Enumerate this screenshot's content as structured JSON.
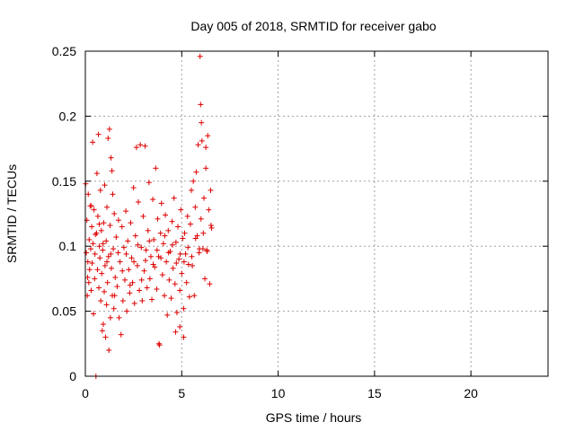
{
  "chart_data": {
    "type": "scatter",
    "title": "Day 005 of 2018, SRMTID for receiver gabo",
    "xlabel": "GPS time / hours",
    "ylabel": "SRMTID / TECUs",
    "xlim": [
      0,
      24
    ],
    "ylim": [
      0,
      0.25
    ],
    "xticks": [
      0,
      5,
      10,
      15,
      20
    ],
    "xtick_labels": [
      "0",
      "5",
      "10",
      "15",
      "20"
    ],
    "yticks": [
      0,
      0.05,
      0.1,
      0.15,
      0.2,
      0.25
    ],
    "ytick_labels": [
      "0",
      "0.05",
      "0.1",
      "0.15",
      "0.2",
      "0.25"
    ],
    "grid": true,
    "marker": "+",
    "color": "#dd0000",
    "series": [
      {
        "name": "SRMTID",
        "points": [
          [
            0.02,
            0.148
          ],
          [
            0.05,
            0.095
          ],
          [
            0.08,
            0.12
          ],
          [
            0.1,
            0.062
          ],
          [
            0.13,
            0.088
          ],
          [
            0.15,
            0.14
          ],
          [
            0.18,
            0.072
          ],
          [
            0.2,
            0.105
          ],
          [
            0.22,
            0.082
          ],
          [
            0.25,
            0.131
          ],
          [
            0.28,
            0.098
          ],
          [
            0.3,
            0.066
          ],
          [
            0.33,
            0.115
          ],
          [
            0.35,
            0.087
          ],
          [
            0.38,
            0.18
          ],
          [
            0.4,
            0.102
          ],
          [
            0.42,
            0.048
          ],
          [
            0.45,
            0.128
          ],
          [
            0.48,
            0.075
          ],
          [
            0.5,
            0.094
          ],
          [
            0.55,
            0.0
          ],
          [
            0.58,
            0.11
          ],
          [
            0.6,
            0.156
          ],
          [
            0.63,
            0.082
          ],
          [
            0.65,
            0.123
          ],
          [
            0.68,
            0.186
          ],
          [
            0.7,
            0.068
          ],
          [
            0.73,
            0.1
          ],
          [
            0.75,
            0.091
          ],
          [
            0.78,
            0.143
          ],
          [
            0.8,
            0.058
          ],
          [
            0.83,
            0.112
          ],
          [
            0.85,
            0.079
          ],
          [
            0.88,
            0.035
          ],
          [
            0.9,
            0.097
          ],
          [
            0.93,
            0.04
          ],
          [
            0.95,
            0.118
          ],
          [
            0.98,
            0.065
          ],
          [
            1.0,
            0.147
          ],
          [
            1.02,
            0.085
          ],
          [
            1.05,
            0.03
          ],
          [
            1.08,
            0.104
          ],
          [
            1.1,
            0.055
          ],
          [
            1.12,
            0.13
          ],
          [
            1.15,
            0.072
          ],
          [
            1.18,
            0.183
          ],
          [
            1.2,
            0.092
          ],
          [
            1.22,
            0.02
          ],
          [
            1.25,
            0.19
          ],
          [
            1.28,
            0.116
          ],
          [
            1.3,
            0.045
          ],
          [
            1.33,
            0.168
          ],
          [
            1.35,
            0.083
          ],
          [
            1.38,
            0.158
          ],
          [
            1.4,
            0.062
          ],
          [
            1.42,
            0.14
          ],
          [
            1.45,
            0.098
          ],
          [
            1.48,
            0.052
          ],
          [
            1.5,
            0.125
          ],
          [
            1.55,
            0.076
          ],
          [
            1.6,
            0.107
          ],
          [
            1.65,
            0.069
          ],
          [
            1.7,
            0.095
          ],
          [
            1.75,
            0.045
          ],
          [
            1.8,
            0.088
          ],
          [
            1.85,
            0.032
          ],
          [
            1.9,
            0.115
          ],
          [
            1.95,
            0.058
          ],
          [
            2.0,
            0.099
          ],
          [
            2.05,
            0.074
          ],
          [
            2.1,
            0.127
          ],
          [
            2.15,
            0.05
          ],
          [
            2.2,
            0.104
          ],
          [
            2.25,
            0.082
          ],
          [
            2.3,
            0.064
          ],
          [
            2.35,
            0.118
          ],
          [
            2.4,
            0.091
          ],
          [
            2.45,
            0.072
          ],
          [
            2.5,
            0.145
          ],
          [
            2.55,
            0.056
          ],
          [
            2.6,
            0.108
          ],
          [
            2.65,
            0.176
          ],
          [
            2.7,
            0.085
          ],
          [
            2.75,
            0.134
          ],
          [
            2.8,
            0.066
          ],
          [
            2.85,
            0.178
          ],
          [
            2.9,
            0.099
          ],
          [
            2.95,
            0.058
          ],
          [
            3.0,
            0.123
          ],
          [
            3.05,
            0.081
          ],
          [
            3.1,
            0.177
          ],
          [
            3.15,
            0.097
          ],
          [
            3.2,
            0.068
          ],
          [
            3.25,
            0.112
          ],
          [
            3.3,
            0.149
          ],
          [
            3.35,
            0.075
          ],
          [
            3.4,
            0.092
          ],
          [
            3.45,
            0.059
          ],
          [
            3.5,
            0.136
          ],
          [
            3.55,
            0.105
          ],
          [
            3.6,
            0.084
          ],
          [
            3.65,
            0.16
          ],
          [
            3.7,
            0.067
          ],
          [
            3.75,
            0.121
          ],
          [
            3.8,
            0.092
          ],
          [
            3.85,
            0.024
          ],
          [
            3.9,
            0.11
          ],
          [
            3.95,
            0.133
          ],
          [
            4.0,
            0.078
          ],
          [
            4.05,
            0.102
          ],
          [
            4.1,
            0.062
          ],
          [
            4.15,
            0.124
          ],
          [
            4.2,
            0.088
          ],
          [
            4.25,
            0.047
          ],
          [
            4.3,
            0.112
          ],
          [
            4.35,
            0.074
          ],
          [
            4.4,
            0.096
          ],
          [
            4.45,
            0.06
          ],
          [
            4.5,
            0.119
          ],
          [
            4.55,
            0.083
          ],
          [
            4.6,
            0.137
          ],
          [
            4.65,
            0.071
          ],
          [
            4.7,
            0.103
          ],
          [
            4.75,
            0.049
          ],
          [
            4.8,
            0.115
          ],
          [
            4.85,
            0.09
          ],
          [
            4.9,
            0.066
          ],
          [
            4.95,
            0.128
          ],
          [
            5.0,
            0.079
          ],
          [
            5.05,
            0.106
          ],
          [
            5.1,
            0.052
          ],
          [
            5.15,
            0.11
          ],
          [
            5.2,
            0.094
          ],
          [
            5.25,
            0.072
          ],
          [
            5.3,
            0.123
          ],
          [
            5.35,
            0.086
          ],
          [
            5.4,
            0.061
          ],
          [
            5.45,
            0.117
          ],
          [
            5.5,
            0.143
          ],
          [
            5.55,
            0.085
          ],
          [
            5.6,
            0.15
          ],
          [
            5.65,
            0.062
          ],
          [
            5.7,
            0.13
          ],
          [
            5.75,
            0.157
          ],
          [
            5.8,
            0.108
          ],
          [
            5.85,
            0.178
          ],
          [
            5.9,
            0.095
          ],
          [
            5.95,
            0.246
          ],
          [
            6.0,
            0.121
          ],
          [
            6.05,
            0.181
          ],
          [
            6.1,
            0.098
          ],
          [
            6.15,
            0.137
          ],
          [
            6.2,
            0.075
          ],
          [
            6.25,
            0.16
          ],
          [
            6.3,
            0.097
          ],
          [
            6.35,
            0.185
          ],
          [
            6.4,
            0.128
          ],
          [
            6.45,
            0.071
          ],
          [
            6.5,
            0.143
          ],
          [
            6.55,
            0.114
          ],
          [
            0.12,
            0.076
          ],
          [
            0.32,
            0.131
          ],
          [
            0.52,
            0.109
          ],
          [
            0.72,
            0.117
          ],
          [
            0.92,
            0.102
          ],
          [
            1.12,
            0.088
          ],
          [
            1.32,
            0.094
          ],
          [
            1.52,
            0.062
          ],
          [
            1.72,
            0.12
          ],
          [
            1.92,
            0.081
          ],
          [
            2.12,
            0.094
          ],
          [
            2.32,
            0.07
          ],
          [
            2.52,
            0.088
          ],
          [
            2.72,
            0.101
          ],
          [
            2.92,
            0.074
          ],
          [
            3.12,
            0.089
          ],
          [
            3.32,
            0.104
          ],
          [
            3.52,
            0.086
          ],
          [
            3.72,
            0.097
          ],
          [
            3.92,
            0.091
          ],
          [
            4.12,
            0.108
          ],
          [
            4.32,
            0.095
          ],
          [
            4.52,
            0.101
          ],
          [
            4.72,
            0.087
          ],
          [
            4.92,
            0.094
          ],
          [
            5.12,
            0.088
          ],
          [
            5.32,
            0.099
          ],
          [
            5.52,
            0.092
          ],
          [
            5.72,
            0.106
          ],
          [
            5.92,
            0.098
          ],
          [
            6.12,
            0.11
          ],
          [
            6.32,
            0.096
          ],
          [
            6.52,
            0.116
          ],
          [
            5.98,
            0.209
          ],
          [
            6.02,
            0.195
          ],
          [
            6.25,
            0.176
          ],
          [
            4.68,
            0.034
          ],
          [
            4.9,
            0.038
          ],
          [
            5.1,
            0.03
          ],
          [
            3.82,
            0.025
          ]
        ]
      }
    ]
  }
}
